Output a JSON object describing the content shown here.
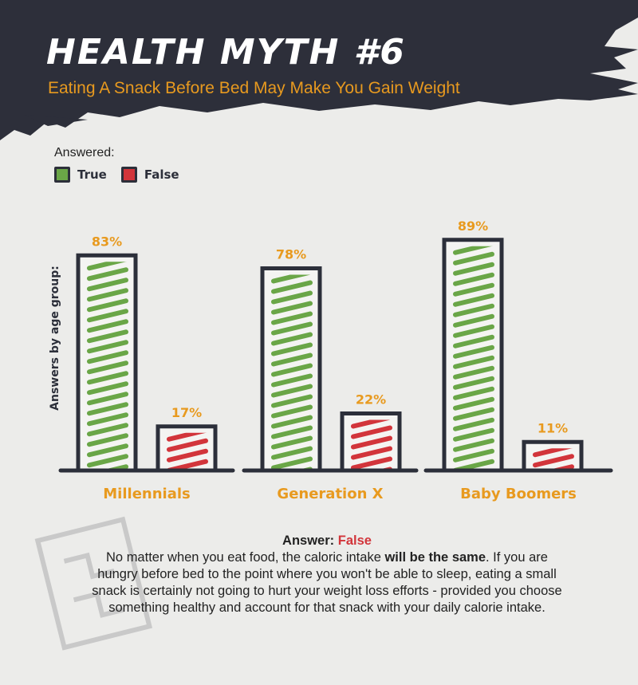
{
  "title": "HEALTH MYTH #6",
  "subtitle": "Eating A Snack Before Bed May Make You Gain Weight",
  "colors": {
    "true": "#6aa647",
    "false": "#d2353b",
    "label": "#e89a1f",
    "dark": "#2c2f3a"
  },
  "legend": {
    "title": "Answered:",
    "true_label": "True",
    "false_label": "False"
  },
  "chart_data": {
    "type": "bar",
    "ylabel": "Answers by age group:",
    "categories": [
      "Millennials",
      "Generation X",
      "Baby Boomers"
    ],
    "series": [
      {
        "name": "True",
        "values": [
          83,
          78,
          89
        ],
        "labels": [
          "83%",
          "78%",
          "89%"
        ]
      },
      {
        "name": "False",
        "values": [
          17,
          22,
          11
        ],
        "labels": [
          "17%",
          "22%",
          "11%"
        ]
      }
    ],
    "ylim": [
      0,
      100
    ],
    "legend_position": "top-left"
  },
  "answer": {
    "heading": "Answer:",
    "value": "False",
    "text_before": "No matter when you eat food, the caloric intake ",
    "text_bold": "will be the same",
    "text_after": ". If you are hungry before bed to the point where you won't be able to sleep, eating a small snack is certainly not going to hurt your weight loss efforts - provided you choose something healthy and account for that snack with your daily calorie intake."
  }
}
